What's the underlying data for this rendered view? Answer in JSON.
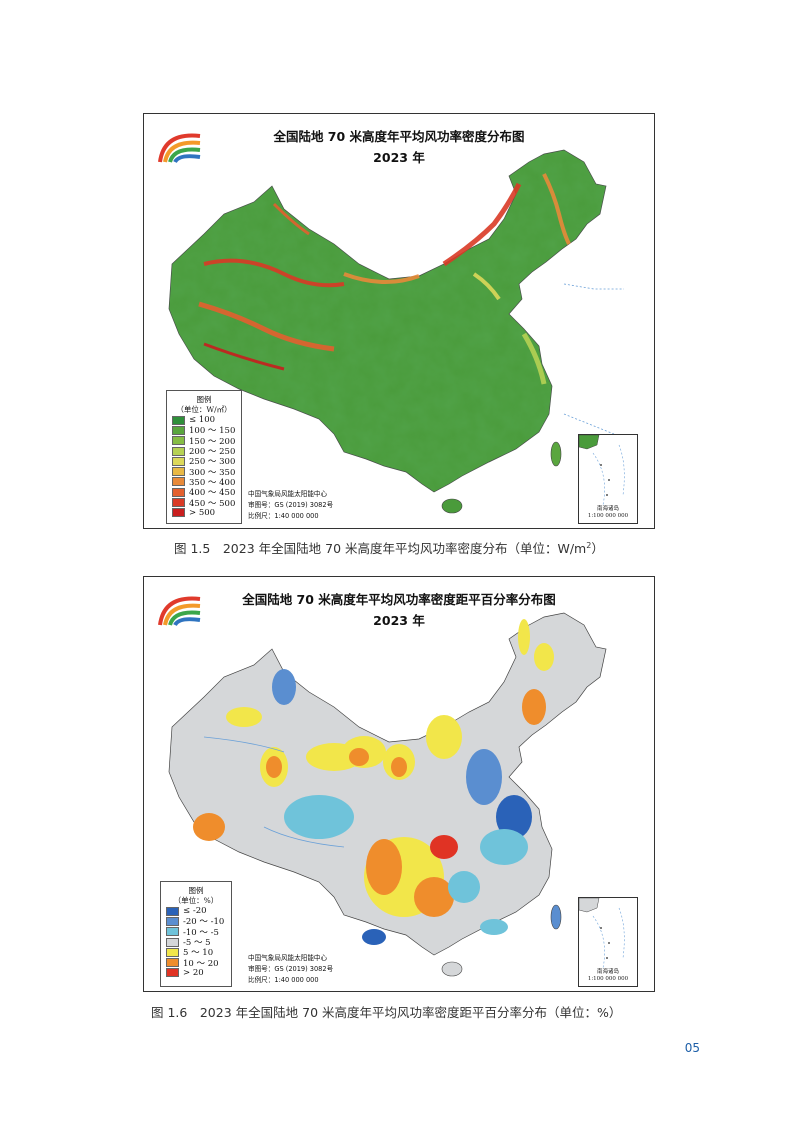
{
  "colors": {
    "map1_legend": [
      "#2f8f3a",
      "#5aa63e",
      "#86bd45",
      "#b6d154",
      "#dcd85a",
      "#e8b845",
      "#e88a3a",
      "#e3602f",
      "#d93a26",
      "#c81e1e"
    ],
    "map2_legend": [
      "#2a62b8",
      "#5a8ed0",
      "#6fc3da",
      "#d5d7d9",
      "#f2e64a",
      "#ef8d2c",
      "#e03324"
    ],
    "sea": "#ffffff",
    "text_blue": "#1d5fa8"
  },
  "map1": {
    "title_line1": "全国陆地 70 米高度年平均风功率密度分布图",
    "title_line2": "2023 年",
    "legend_title": "图例",
    "legend_unit": "（单位：W/㎡）",
    "legend_items": [
      "≤ 100",
      "100 ～ 150",
      "150 ～ 200",
      "200 ～ 250",
      "250 ～ 300",
      "300 ～ 350",
      "350 ～ 400",
      "400 ～ 450",
      "450 ～ 500",
      "> 500"
    ],
    "credit_org": "中国气象局风能太阳能中心",
    "credit_review": "审图号：GS (2019) 3082号",
    "credit_scale": "比例尺：1:40 000 000",
    "inset_label_1": "南海诸岛",
    "inset_label_2": "1:100 000 000",
    "caption_prefix": "图 1.5　2023 年全国陆地 70 米高度年平均风功率密度分布（单位：W/m",
    "caption_sup": "2",
    "caption_suffix": "）",
    "logo": "cma-rainbow-logo"
  },
  "map2": {
    "title_line1": "全国陆地 70 米高度年平均风功率密度距平百分率分布图",
    "title_line2": "2023 年",
    "legend_title": "图例",
    "legend_unit": "（单位：%）",
    "legend_items": [
      "≤ -20",
      "-20 ～ -10",
      "-10 ～ -5",
      "-5 ～ 5",
      "5 ～ 10",
      "10 ～ 20",
      "> 20"
    ],
    "credit_org": "中国气象局风能太阳能中心",
    "credit_review": "审图号：GS (2019) 3082号",
    "credit_scale": "比例尺：1:40 000 000",
    "inset_label_1": "南海诸岛",
    "inset_label_2": "1:100 000 000",
    "caption": "图 1.6　2023 年全国陆地 70 米高度年平均风功率密度距平百分率分布（单位：%）",
    "logo": "cma-rainbow-logo"
  },
  "page_number": "05"
}
